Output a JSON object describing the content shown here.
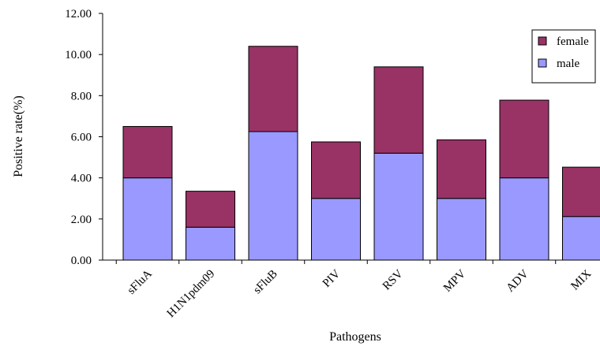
{
  "chart_data": {
    "type": "bar",
    "stacked": true,
    "categories": [
      "sFluA",
      "H1N1pdm09",
      "sFluB",
      "PIV",
      "RSV",
      "MPV",
      "ADV",
      "MIX"
    ],
    "series": [
      {
        "name": "male",
        "values": [
          4.0,
          1.6,
          6.25,
          3.0,
          5.2,
          3.0,
          4.0,
          2.12
        ],
        "color": "#9999ff"
      },
      {
        "name": "female",
        "values": [
          2.5,
          1.75,
          4.15,
          2.75,
          4.2,
          2.85,
          3.78,
          2.4
        ],
        "color": "#993366"
      }
    ],
    "ylim": [
      0,
      12
    ],
    "yticks": [
      "0.00",
      "2.00",
      "4.00",
      "6.00",
      "8.00",
      "10.00",
      "12.00"
    ],
    "xlabel": "Pathogens",
    "ylabel": "Positive rate(%)",
    "legend": {
      "position": "top-right",
      "order": [
        "female",
        "male"
      ]
    },
    "grid": false
  }
}
